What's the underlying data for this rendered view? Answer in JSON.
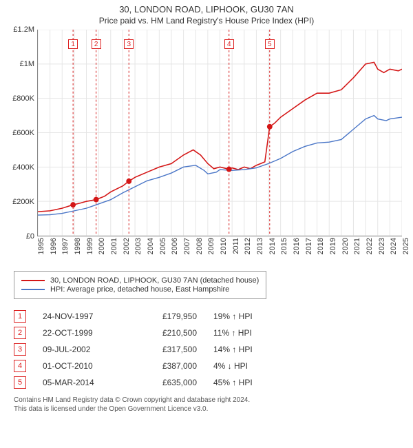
{
  "title": "30, LONDON ROAD, LIPHOOK, GU30 7AN",
  "subtitle": "Price paid vs. HM Land Registry's House Price Index (HPI)",
  "chart": {
    "type": "line",
    "x_min": 1995,
    "x_max": 2025,
    "y_min": 0,
    "y_max": 1200000,
    "y_ticks": [
      0,
      200000,
      400000,
      600000,
      800000,
      1000000,
      1200000
    ],
    "y_tick_labels": [
      "£0",
      "£200K",
      "£400K",
      "£600K",
      "£800K",
      "£1M",
      "£1.2M"
    ],
    "x_ticks": [
      1995,
      1996,
      1997,
      1998,
      1999,
      2000,
      2001,
      2002,
      2003,
      2004,
      2005,
      2006,
      2007,
      2008,
      2009,
      2010,
      2011,
      2012,
      2013,
      2014,
      2015,
      2016,
      2017,
      2018,
      2019,
      2020,
      2021,
      2022,
      2023,
      2024,
      2025
    ],
    "grid_color": "#e5e5e5",
    "background_color": "#ffffff",
    "series": [
      {
        "name": "property",
        "label": "30, LONDON ROAD, LIPHOOK, GU30 7AN (detached house)",
        "color": "#d41616",
        "line_width": 1.6,
        "data": [
          [
            1995,
            140000
          ],
          [
            1996,
            145000
          ],
          [
            1997,
            160000
          ],
          [
            1997.9,
            179950
          ],
          [
            1998.5,
            190000
          ],
          [
            1999,
            200000
          ],
          [
            1999.8,
            210500
          ],
          [
            2000.5,
            230000
          ],
          [
            2001,
            255000
          ],
          [
            2002,
            290000
          ],
          [
            2002.5,
            317500
          ],
          [
            2003,
            340000
          ],
          [
            2004,
            370000
          ],
          [
            2005,
            400000
          ],
          [
            2006,
            420000
          ],
          [
            2007,
            470000
          ],
          [
            2007.8,
            500000
          ],
          [
            2008.4,
            470000
          ],
          [
            2009,
            420000
          ],
          [
            2009.5,
            390000
          ],
          [
            2010,
            400000
          ],
          [
            2010.75,
            387000
          ],
          [
            2011,
            395000
          ],
          [
            2011.5,
            385000
          ],
          [
            2012,
            400000
          ],
          [
            2012.5,
            390000
          ],
          [
            2013,
            410000
          ],
          [
            2013.7,
            430000
          ],
          [
            2014.1,
            635000
          ],
          [
            2014.5,
            655000
          ],
          [
            2015,
            690000
          ],
          [
            2016,
            740000
          ],
          [
            2017,
            790000
          ],
          [
            2018,
            830000
          ],
          [
            2019,
            830000
          ],
          [
            2020,
            850000
          ],
          [
            2021,
            920000
          ],
          [
            2022,
            1000000
          ],
          [
            2022.7,
            1010000
          ],
          [
            2023,
            970000
          ],
          [
            2023.5,
            950000
          ],
          [
            2024,
            970000
          ],
          [
            2024.7,
            960000
          ],
          [
            2025,
            970000
          ]
        ]
      },
      {
        "name": "hpi",
        "label": "HPI: Average price, detached house, East Hampshire",
        "color": "#4a76c7",
        "line_width": 1.4,
        "data": [
          [
            1995,
            120000
          ],
          [
            1996,
            122000
          ],
          [
            1997,
            130000
          ],
          [
            1998,
            145000
          ],
          [
            1999,
            160000
          ],
          [
            2000,
            185000
          ],
          [
            2001,
            210000
          ],
          [
            2002,
            250000
          ],
          [
            2003,
            285000
          ],
          [
            2004,
            320000
          ],
          [
            2005,
            340000
          ],
          [
            2006,
            365000
          ],
          [
            2007,
            400000
          ],
          [
            2008,
            410000
          ],
          [
            2008.7,
            380000
          ],
          [
            2009,
            360000
          ],
          [
            2009.7,
            370000
          ],
          [
            2010,
            385000
          ],
          [
            2011,
            380000
          ],
          [
            2012,
            385000
          ],
          [
            2013,
            395000
          ],
          [
            2014,
            420000
          ],
          [
            2015,
            450000
          ],
          [
            2016,
            490000
          ],
          [
            2017,
            520000
          ],
          [
            2018,
            540000
          ],
          [
            2019,
            545000
          ],
          [
            2020,
            560000
          ],
          [
            2021,
            620000
          ],
          [
            2022,
            680000
          ],
          [
            2022.7,
            700000
          ],
          [
            2023,
            680000
          ],
          [
            2023.7,
            670000
          ],
          [
            2024,
            680000
          ],
          [
            2025,
            690000
          ]
        ]
      }
    ],
    "markers": [
      {
        "n": 1,
        "x": 1997.9,
        "y": 179950
      },
      {
        "n": 2,
        "x": 1999.8,
        "y": 210500
      },
      {
        "n": 3,
        "x": 2002.5,
        "y": 317500
      },
      {
        "n": 4,
        "x": 2010.75,
        "y": 387000
      },
      {
        "n": 5,
        "x": 2014.1,
        "y": 635000
      }
    ],
    "marker_color": "#d41616",
    "marker_line_color": "#d41616"
  },
  "legend": {
    "items": [
      {
        "color": "#d41616",
        "label": "30, LONDON ROAD, LIPHOOK, GU30 7AN (detached house)"
      },
      {
        "color": "#4a76c7",
        "label": "HPI: Average price, detached house, East Hampshire"
      }
    ]
  },
  "sales": [
    {
      "n": "1",
      "date": "24-NOV-1997",
      "price": "£179,950",
      "diff": "19% ↑ HPI"
    },
    {
      "n": "2",
      "date": "22-OCT-1999",
      "price": "£210,500",
      "diff": "11% ↑ HPI"
    },
    {
      "n": "3",
      "date": "09-JUL-2002",
      "price": "£317,500",
      "diff": "14% ↑ HPI"
    },
    {
      "n": "4",
      "date": "01-OCT-2010",
      "price": "£387,000",
      "diff": "4% ↓ HPI"
    },
    {
      "n": "5",
      "date": "05-MAR-2014",
      "price": "£635,000",
      "diff": "45% ↑ HPI"
    }
  ],
  "footer": {
    "line1": "Contains HM Land Registry data © Crown copyright and database right 2024.",
    "line2": "This data is licensed under the Open Government Licence v3.0."
  }
}
